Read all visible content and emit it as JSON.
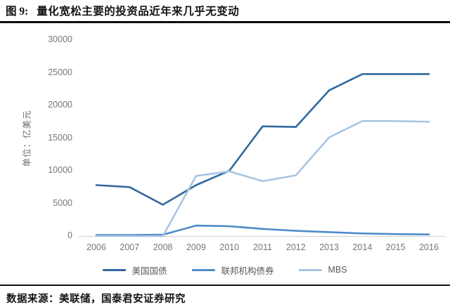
{
  "figure": {
    "title_prefix": "图 9:",
    "title": "量化宽松主要的投资品近年来几乎无变动",
    "source_note": "数据来源：美联储，国泰君安证券研究"
  },
  "chart_data": {
    "type": "line",
    "title": "量化宽松主要的投资品近年来几乎无变动",
    "xlabel": "",
    "ylabel": "单位：亿美元",
    "categories": [
      "2006",
      "2007",
      "2008",
      "2009",
      "2010",
      "2011",
      "2012",
      "2013",
      "2014",
      "2015",
      "2016"
    ],
    "series": [
      {
        "name": "美国国债",
        "color": "#31699e",
        "values": [
          7800,
          7500,
          4800,
          7800,
          10000,
          16800,
          16700,
          22300,
          24800,
          24800,
          24800
        ]
      },
      {
        "name": "联邦机构债券",
        "color": "#4f8bc9",
        "values": [
          150,
          150,
          200,
          1600,
          1500,
          1100,
          800,
          600,
          400,
          300,
          250
        ]
      },
      {
        "name": "MBS",
        "color": "#a9c5e3",
        "values": [
          0,
          0,
          0,
          9200,
          9900,
          8400,
          9300,
          15100,
          17600,
          17600,
          17500
        ]
      }
    ],
    "ylim": [
      0,
      30000
    ],
    "yticks": [
      0,
      5000,
      10000,
      15000,
      20000,
      25000,
      30000
    ],
    "grid": false,
    "legend_position": "bottom",
    "axis_line_color": "#d6d6d6",
    "tick_color": "#767676"
  }
}
